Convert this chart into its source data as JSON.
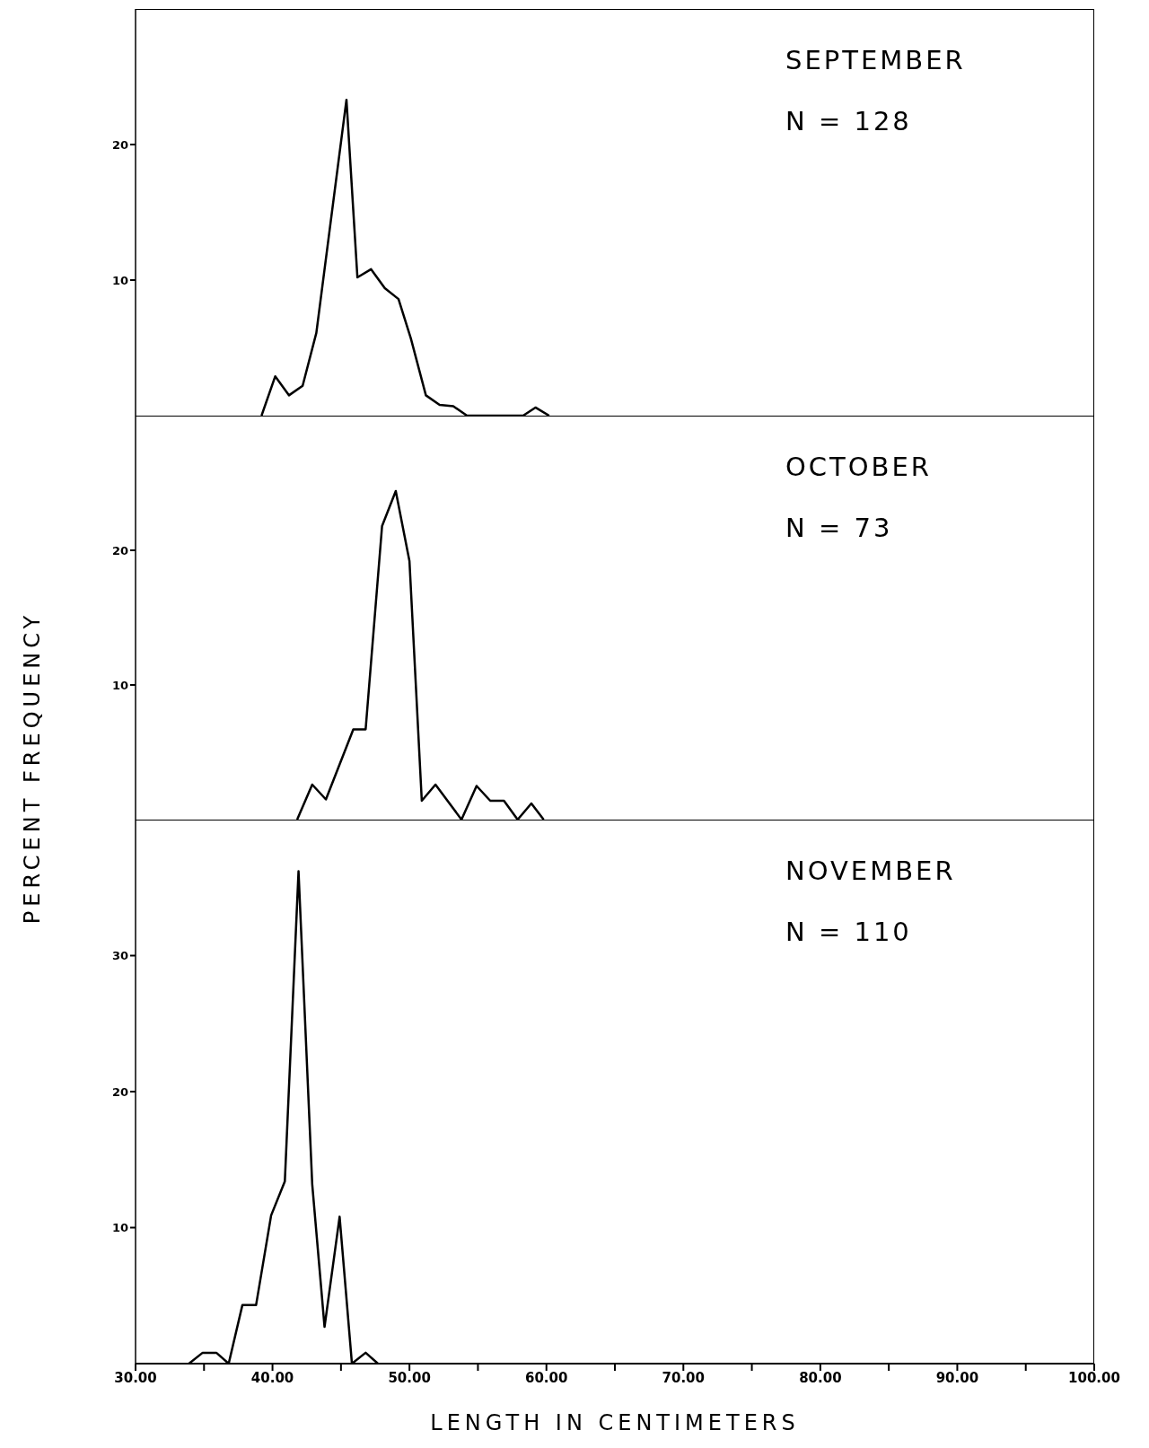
{
  "chart_data": [
    {
      "type": "line",
      "annotations": [
        "SEPTEMBER",
        "N = 128"
      ],
      "x": [
        39.2,
        40.2,
        41.2,
        42.2,
        43.2,
        45.4,
        46.2,
        47.2,
        48.2,
        49.2,
        50.1,
        51.2,
        52.2,
        53.2,
        54.2,
        58.3,
        59.2,
        60.2
      ],
      "values": [
        0,
        2.9,
        1.5,
        2.2,
        6.1,
        23.3,
        10.2,
        10.8,
        9.4,
        8.6,
        5.7,
        1.5,
        0.8,
        0.7,
        0,
        0,
        0.6,
        0
      ],
      "color": "#000000",
      "xlim": [
        30,
        100
      ],
      "ylim": [
        0,
        30
      ],
      "yticks": [
        10,
        20
      ],
      "tick_labels": "y"
    },
    {
      "type": "line",
      "annotations": [
        "OCTOBER",
        "N = 73"
      ],
      "ylabel": "PERCENT FREQUENCY",
      "x": [
        41.8,
        42.9,
        43.9,
        45.9,
        46.8,
        48.0,
        49.0,
        50.0,
        50.9,
        51.9,
        53.8,
        54.9,
        55.9,
        56.9,
        57.9,
        58.9,
        59.8
      ],
      "values": [
        0,
        2.6,
        1.5,
        6.7,
        6.7,
        21.8,
        24.4,
        19.2,
        1.4,
        2.6,
        0,
        2.5,
        1.4,
        1.4,
        0,
        1.2,
        0
      ],
      "color": "#000000",
      "xlim": [
        30,
        100
      ],
      "ylim": [
        0,
        30
      ],
      "yticks": [
        10,
        20
      ],
      "tick_labels": "y"
    },
    {
      "type": "line",
      "annotations": [
        "NOVEMBER",
        "N = 110"
      ],
      "xlabel": "LENGTH IN CENTIMETERS",
      "x": [
        33.9,
        34.9,
        35.9,
        36.8,
        37.8,
        38.8,
        39.9,
        40.9,
        41.9,
        42.9,
        43.8,
        44.9,
        45.8,
        46.8,
        47.7
      ],
      "values": [
        0,
        0.8,
        0.8,
        0,
        4.3,
        4.3,
        10.9,
        13.4,
        36.2,
        13.2,
        2.7,
        10.8,
        0,
        0.8,
        0
      ],
      "color": "#000000",
      "xlim": [
        30,
        100
      ],
      "ylim": [
        0,
        40
      ],
      "yticks": [
        10,
        20,
        30
      ],
      "xticks": [
        {
          "value": 30,
          "label": "30.00"
        },
        {
          "value": 35,
          "label": null
        },
        {
          "value": 40,
          "label": "40.00"
        },
        {
          "value": 45,
          "label": null
        },
        {
          "value": 50,
          "label": "50.00"
        },
        {
          "value": 55,
          "label": null
        },
        {
          "value": 60,
          "label": "60.00"
        },
        {
          "value": 65,
          "label": null
        },
        {
          "value": 70,
          "label": "70.00"
        },
        {
          "value": 75,
          "label": null
        },
        {
          "value": 80,
          "label": "80.00"
        },
        {
          "value": 85,
          "label": null
        },
        {
          "value": 90,
          "label": "90.00"
        },
        {
          "value": 95,
          "label": null
        },
        {
          "value": 100,
          "label": "100.00"
        }
      ]
    }
  ]
}
